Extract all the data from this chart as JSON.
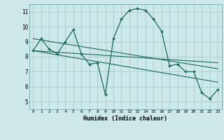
{
  "title": "",
  "xlabel": "Humidex (Indice chaleur)",
  "bg_color": "#cce8e8",
  "grid_color": "#aacccc",
  "line_color": "#1a6b5a",
  "xlim": [
    -0.5,
    23.5
  ],
  "ylim": [
    4.5,
    11.5
  ],
  "xticks": [
    0,
    1,
    2,
    3,
    4,
    5,
    6,
    7,
    8,
    9,
    10,
    11,
    12,
    13,
    14,
    15,
    16,
    17,
    18,
    19,
    20,
    21,
    22,
    23
  ],
  "yticks": [
    5,
    6,
    7,
    8,
    9,
    10,
    11
  ],
  "curve1_x": [
    0,
    1,
    2,
    3,
    4,
    5,
    6,
    7,
    8,
    9,
    10,
    11,
    12,
    13,
    14,
    15,
    16,
    17,
    18,
    19,
    20,
    21,
    22,
    23
  ],
  "curve1_y": [
    8.4,
    9.2,
    8.5,
    8.2,
    9.0,
    9.8,
    8.2,
    7.5,
    7.6,
    5.5,
    9.2,
    10.5,
    11.1,
    11.2,
    11.1,
    10.5,
    9.7,
    7.4,
    7.5,
    7.0,
    7.0,
    5.6,
    5.2,
    5.8
  ],
  "line1_x": [
    0,
    23
  ],
  "line1_y": [
    8.4,
    6.3
  ],
  "line2_x": [
    0,
    23
  ],
  "line2_y": [
    8.4,
    7.6
  ],
  "line3_x": [
    0,
    23
  ],
  "line3_y": [
    9.2,
    7.2
  ]
}
